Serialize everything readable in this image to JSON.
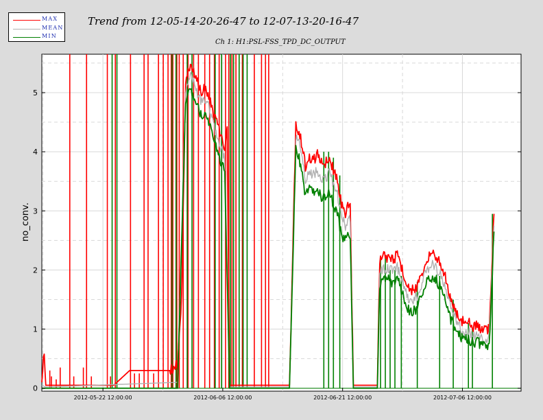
{
  "legend": {
    "items": [
      {
        "label": "MAX",
        "color": "#ff0000"
      },
      {
        "label": "MEAN",
        "color": "#b0b0b0"
      },
      {
        "label": "MIN",
        "color": "#008000"
      }
    ]
  },
  "header": {
    "title": "Trend from 12-05-14-20-26-47 to 12-07-13-20-16-47",
    "subtitle": "Ch 1: H1:PSL-FSS_TPD_DC_OUTPUT"
  },
  "chart_data": {
    "type": "line",
    "ylabel": "no_conv.",
    "xlabel": "",
    "x_unit": "days since 2012-05-14 20:26:47",
    "xlim": [
      0,
      59.99
    ],
    "ylim": [
      -0.05,
      5.65
    ],
    "grid": true,
    "legend_position": "top-left",
    "y_ticks": [
      0,
      1,
      2,
      3,
      4,
      5
    ],
    "x_ticks": [
      {
        "value": 7.65,
        "label": "2012-05-22 12:00:00"
      },
      {
        "value": 22.65,
        "label": "2012-06-06 12:00:00"
      },
      {
        "value": 37.65,
        "label": "2012-06-21 12:00:00"
      },
      {
        "value": 52.65,
        "label": "2012-07-06 12:00:00"
      }
    ],
    "series": [
      {
        "name": "MAX",
        "color": "#ff0000",
        "points": [
          [
            0,
            0.1
          ],
          [
            0.3,
            0.65
          ],
          [
            0.5,
            0.05
          ],
          [
            4,
            0.05
          ],
          [
            7,
            0.05
          ],
          [
            9,
            0.05
          ],
          [
            11,
            0.3
          ],
          [
            14,
            0.3
          ],
          [
            16,
            0.3
          ],
          [
            17,
            0.4
          ],
          [
            17.5,
            1.5
          ],
          [
            18,
            5.2
          ],
          [
            18.5,
            5.45
          ],
          [
            19,
            5.35
          ],
          [
            19.5,
            5.2
          ],
          [
            20,
            5.0
          ],
          [
            20.5,
            5.1
          ],
          [
            21,
            4.9
          ],
          [
            21.5,
            4.6
          ],
          [
            22,
            4.45
          ],
          [
            22.5,
            4.2
          ],
          [
            22.9,
            4.05
          ],
          [
            23.2,
            4.35
          ],
          [
            23.5,
            0.05
          ],
          [
            26,
            0.05
          ],
          [
            28,
            0.05
          ],
          [
            31,
            0.05
          ],
          [
            31.8,
            4.45
          ],
          [
            32.2,
            4.35
          ],
          [
            32.6,
            4.1
          ],
          [
            33,
            3.75
          ],
          [
            33.5,
            3.9
          ],
          [
            34,
            3.85
          ],
          [
            34.5,
            3.95
          ],
          [
            35,
            3.8
          ],
          [
            35.5,
            3.8
          ],
          [
            36,
            3.9
          ],
          [
            36.5,
            3.7
          ],
          [
            37,
            3.55
          ],
          [
            37.5,
            3.1
          ],
          [
            38,
            2.95
          ],
          [
            38.3,
            3.1
          ],
          [
            38.6,
            3.05
          ],
          [
            39,
            0.05
          ],
          [
            42,
            0.05
          ],
          [
            42.3,
            2.15
          ],
          [
            42.7,
            2.3
          ],
          [
            43,
            2.2
          ],
          [
            43.5,
            2.25
          ],
          [
            44,
            2.15
          ],
          [
            44.5,
            2.3
          ],
          [
            45,
            2.05
          ],
          [
            45.5,
            1.85
          ],
          [
            46,
            1.7
          ],
          [
            46.5,
            1.65
          ],
          [
            47,
            1.7
          ],
          [
            47.5,
            1.9
          ],
          [
            48,
            2.1
          ],
          [
            48.5,
            2.25
          ],
          [
            49,
            2.3
          ],
          [
            49.5,
            2.2
          ],
          [
            50,
            2.1
          ],
          [
            50.5,
            1.9
          ],
          [
            51,
            1.6
          ],
          [
            51.5,
            1.4
          ],
          [
            52,
            1.25
          ],
          [
            52.5,
            1.15
          ],
          [
            53,
            1.1
          ],
          [
            53.5,
            1.1
          ],
          [
            54,
            1.05
          ],
          [
            54.5,
            1.05
          ],
          [
            55,
            1.0
          ],
          [
            55.5,
            1.0
          ],
          [
            56,
            1.0
          ],
          [
            56.6,
            2.95
          ]
        ]
      },
      {
        "name": "MEAN",
        "color": "#b0b0b0",
        "points": [
          [
            0,
            0.05
          ],
          [
            0.5,
            0.02
          ],
          [
            17,
            0.1
          ],
          [
            18,
            5.05
          ],
          [
            18.5,
            5.3
          ],
          [
            19,
            5.2
          ],
          [
            19.5,
            5.0
          ],
          [
            20,
            4.85
          ],
          [
            20.5,
            4.9
          ],
          [
            21,
            4.7
          ],
          [
            21.5,
            4.45
          ],
          [
            22,
            4.25
          ],
          [
            22.5,
            4.05
          ],
          [
            22.9,
            3.9
          ],
          [
            23.5,
            0.02
          ],
          [
            31,
            0.02
          ],
          [
            31.8,
            4.25
          ],
          [
            32.2,
            4.15
          ],
          [
            32.6,
            3.9
          ],
          [
            33,
            3.55
          ],
          [
            33.5,
            3.65
          ],
          [
            34,
            3.6
          ],
          [
            34.5,
            3.7
          ],
          [
            35,
            3.55
          ],
          [
            35.5,
            3.55
          ],
          [
            36,
            3.65
          ],
          [
            36.5,
            3.45
          ],
          [
            37,
            3.3
          ],
          [
            37.5,
            2.9
          ],
          [
            38,
            2.75
          ],
          [
            38.6,
            2.85
          ],
          [
            39,
            0.02
          ],
          [
            42,
            0.02
          ],
          [
            42.3,
            1.95
          ],
          [
            42.7,
            2.05
          ],
          [
            43,
            2.0
          ],
          [
            43.5,
            2.05
          ],
          [
            44,
            1.95
          ],
          [
            44.5,
            2.05
          ],
          [
            45,
            1.85
          ],
          [
            45.5,
            1.65
          ],
          [
            46,
            1.5
          ],
          [
            46.5,
            1.5
          ],
          [
            47,
            1.55
          ],
          [
            47.5,
            1.75
          ],
          [
            48,
            1.95
          ],
          [
            48.5,
            2.05
          ],
          [
            49,
            2.1
          ],
          [
            49.5,
            2.0
          ],
          [
            50,
            1.9
          ],
          [
            50.5,
            1.7
          ],
          [
            51,
            1.45
          ],
          [
            51.5,
            1.25
          ],
          [
            52,
            1.1
          ],
          [
            52.5,
            1.0
          ],
          [
            53,
            0.95
          ],
          [
            53.5,
            0.95
          ],
          [
            54,
            0.9
          ],
          [
            54.5,
            0.9
          ],
          [
            55,
            0.87
          ],
          [
            55.5,
            0.86
          ],
          [
            56,
            0.85
          ],
          [
            56.6,
            2.75
          ]
        ]
      },
      {
        "name": "MIN",
        "color": "#008000",
        "points": [
          [
            0,
            0.0
          ],
          [
            17,
            0.0
          ],
          [
            18,
            4.9
          ],
          [
            18.5,
            5.1
          ],
          [
            19,
            4.95
          ],
          [
            19.5,
            4.75
          ],
          [
            20,
            4.6
          ],
          [
            20.5,
            4.65
          ],
          [
            21,
            4.45
          ],
          [
            21.5,
            4.2
          ],
          [
            22,
            4.0
          ],
          [
            22.5,
            3.8
          ],
          [
            22.9,
            3.65
          ],
          [
            23.5,
            0.0
          ],
          [
            31,
            0.0
          ],
          [
            31.8,
            4.05
          ],
          [
            32.2,
            3.9
          ],
          [
            32.6,
            3.65
          ],
          [
            33,
            3.25
          ],
          [
            33.5,
            3.35
          ],
          [
            34,
            3.3
          ],
          [
            34.5,
            3.4
          ],
          [
            35,
            3.2
          ],
          [
            35.5,
            3.25
          ],
          [
            36,
            3.3
          ],
          [
            36.5,
            3.1
          ],
          [
            37,
            2.95
          ],
          [
            37.5,
            2.6
          ],
          [
            38,
            2.5
          ],
          [
            38.6,
            2.6
          ],
          [
            39,
            0.0
          ],
          [
            42,
            0.0
          ],
          [
            42.3,
            1.75
          ],
          [
            42.7,
            1.85
          ],
          [
            43,
            1.8
          ],
          [
            43.5,
            1.85
          ],
          [
            44,
            1.75
          ],
          [
            44.5,
            1.85
          ],
          [
            45,
            1.65
          ],
          [
            45.5,
            1.45
          ],
          [
            46,
            1.3
          ],
          [
            46.5,
            1.3
          ],
          [
            47,
            1.35
          ],
          [
            47.5,
            1.55
          ],
          [
            48,
            1.75
          ],
          [
            48.5,
            1.85
          ],
          [
            49,
            1.9
          ],
          [
            49.5,
            1.8
          ],
          [
            50,
            1.7
          ],
          [
            50.5,
            1.5
          ],
          [
            51,
            1.25
          ],
          [
            51.5,
            1.05
          ],
          [
            52,
            0.95
          ],
          [
            52.5,
            0.85
          ],
          [
            53,
            0.85
          ],
          [
            53.5,
            0.8
          ],
          [
            54,
            0.78
          ],
          [
            54.5,
            0.78
          ],
          [
            55,
            0.75
          ],
          [
            55.5,
            0.72
          ],
          [
            56,
            0.7
          ],
          [
            56.6,
            2.65
          ]
        ]
      }
    ],
    "spikes_max": [
      1.0,
      1.2,
      1.8,
      2.3,
      3.5,
      4.0,
      5.2,
      5.6,
      6.2,
      8.2,
      8.6,
      9.2,
      11.1,
      11.6,
      12.2,
      12.8,
      13.3,
      14.0,
      14.6,
      15.2,
      15.8,
      16.2,
      16.4,
      16.9,
      17.2,
      17.7,
      18.3,
      19.0,
      19.6,
      20.4,
      21.0,
      21.6,
      22.2,
      23.0,
      23.4,
      23.8,
      24.3,
      25.1,
      26.6,
      27.5,
      28.0,
      28.4
    ],
    "spikes_max_heights": [
      0.3,
      0.2,
      0.15,
      0.35,
      5.65,
      0.2,
      0.35,
      5.65,
      0.2,
      5.65,
      0.2,
      5.65,
      5.65,
      0.25,
      0.25,
      5.65,
      5.65,
      0.25,
      5.65,
      5.65,
      5.65,
      5.65,
      5.65,
      5.65,
      5.65,
      5.65,
      5.65,
      5.65,
      5.65,
      5.65,
      5.65,
      5.65,
      5.65,
      5.65,
      5.65,
      5.65,
      5.65,
      5.65,
      5.65,
      5.65,
      5.65,
      5.65
    ],
    "spikes_min": [
      8.8,
      9.4,
      16.3,
      16.8,
      18.2,
      18.8,
      21.7,
      22.5,
      23.6,
      24.0,
      24.7,
      25.2,
      25.7,
      35.3,
      35.9,
      36.5,
      37.3,
      42.4,
      43.0,
      43.6,
      44.2,
      45.0,
      47.0,
      49.8,
      51.5,
      53.4,
      53.9,
      56.4
    ],
    "spikes_min_heights": [
      5.65,
      5.65,
      5.65,
      5.65,
      5.65,
      5.65,
      5.65,
      5.65,
      5.65,
      5.65,
      5.65,
      5.65,
      5.65,
      4.0,
      4.0,
      3.9,
      3.6,
      2.2,
      2.2,
      2.0,
      2.0,
      1.9,
      1.8,
      1.9,
      1.5,
      1.1,
      1.0,
      2.95
    ]
  }
}
